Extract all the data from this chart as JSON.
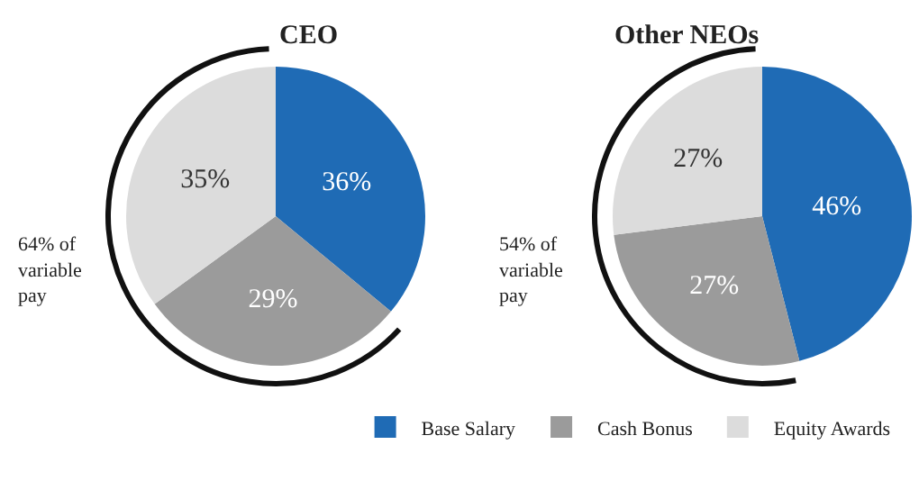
{
  "chart_data": [
    {
      "type": "pie",
      "title": "CEO",
      "categories": [
        "Base Salary",
        "Cash Bonus",
        "Equity Awards"
      ],
      "values": [
        36,
        29,
        35
      ],
      "value_labels": [
        "36%",
        "29%",
        "35%"
      ],
      "colors": [
        "#1f6bb5",
        "#9b9b9b",
        "#dcdcdc"
      ],
      "annotations": [
        "64% of variable pay"
      ],
      "legend": "bottom"
    },
    {
      "type": "pie",
      "title": "Other NEOs",
      "categories": [
        null,
        null,
        null
      ],
      "values": [
        46,
        27,
        27
      ],
      "value_labels": [
        "46%",
        "27%",
        "27%"
      ],
      "colors": [
        "#1f6bb5",
        "#9b9b9b",
        "#dcdcdc"
      ],
      "annotations": [
        "54% of variable pay"
      ],
      "legend": false
    }
  ]
}
